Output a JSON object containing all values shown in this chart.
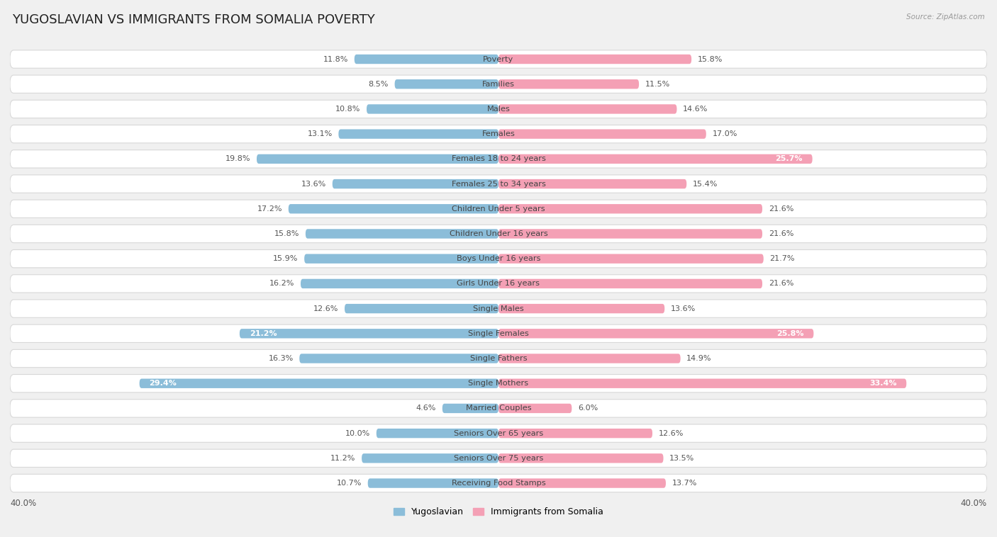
{
  "title": "YUGOSLAVIAN VS IMMIGRANTS FROM SOMALIA POVERTY",
  "source": "Source: ZipAtlas.com",
  "categories": [
    "Poverty",
    "Families",
    "Males",
    "Females",
    "Females 18 to 24 years",
    "Females 25 to 34 years",
    "Children Under 5 years",
    "Children Under 16 years",
    "Boys Under 16 years",
    "Girls Under 16 years",
    "Single Males",
    "Single Females",
    "Single Fathers",
    "Single Mothers",
    "Married Couples",
    "Seniors Over 65 years",
    "Seniors Over 75 years",
    "Receiving Food Stamps"
  ],
  "yugoslavian": [
    11.8,
    8.5,
    10.8,
    13.1,
    19.8,
    13.6,
    17.2,
    15.8,
    15.9,
    16.2,
    12.6,
    21.2,
    16.3,
    29.4,
    4.6,
    10.0,
    11.2,
    10.7
  ],
  "somalia": [
    15.8,
    11.5,
    14.6,
    17.0,
    25.7,
    15.4,
    21.6,
    21.6,
    21.7,
    21.6,
    13.6,
    25.8,
    14.9,
    33.4,
    6.0,
    12.6,
    13.5,
    13.7
  ],
  "yug_color": "#8bbdd9",
  "som_color": "#f4a0b5",
  "yug_label": "Yugoslavian",
  "som_label": "Immigrants from Somalia",
  "xlim": 40.0,
  "bg_color": "#f0f0f0",
  "row_bg_color": "#ffffff",
  "row_border_color": "#d8d8d8",
  "title_fontsize": 13,
  "label_fontsize": 8.2,
  "value_fontsize": 8.0,
  "value_color_dark": "#555555",
  "value_color_light": "#ffffff"
}
